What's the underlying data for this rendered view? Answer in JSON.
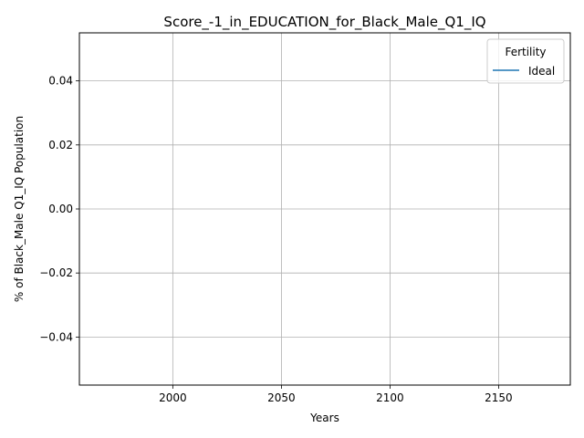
{
  "chart_data": {
    "type": "line",
    "title": "Score_-1_in_EDUCATION_for_Black_Male_Q1_IQ",
    "xlabel": "Years",
    "ylabel": "% of Black_Male Q1_IQ Population",
    "xlim": [
      1957,
      2183
    ],
    "ylim": [
      -0.055,
      0.055
    ],
    "x_ticks": [
      2000,
      2050,
      2100,
      2150
    ],
    "x_tick_labels": [
      "2000",
      "2050",
      "2100",
      "2150"
    ],
    "y_ticks": [
      -0.04,
      -0.02,
      0.0,
      0.02,
      0.04
    ],
    "y_tick_labels": [
      "−0.04",
      "−0.02",
      "0.00",
      "0.02",
      "0.04"
    ],
    "grid": true,
    "legend": {
      "title": "Fertility",
      "placement": "top-right",
      "entries": [
        {
          "label": "Ideal",
          "color": "#1f77b4"
        }
      ]
    },
    "series": [
      {
        "name": "Ideal",
        "color": "#1f77b4",
        "x": [],
        "y": []
      }
    ]
  }
}
